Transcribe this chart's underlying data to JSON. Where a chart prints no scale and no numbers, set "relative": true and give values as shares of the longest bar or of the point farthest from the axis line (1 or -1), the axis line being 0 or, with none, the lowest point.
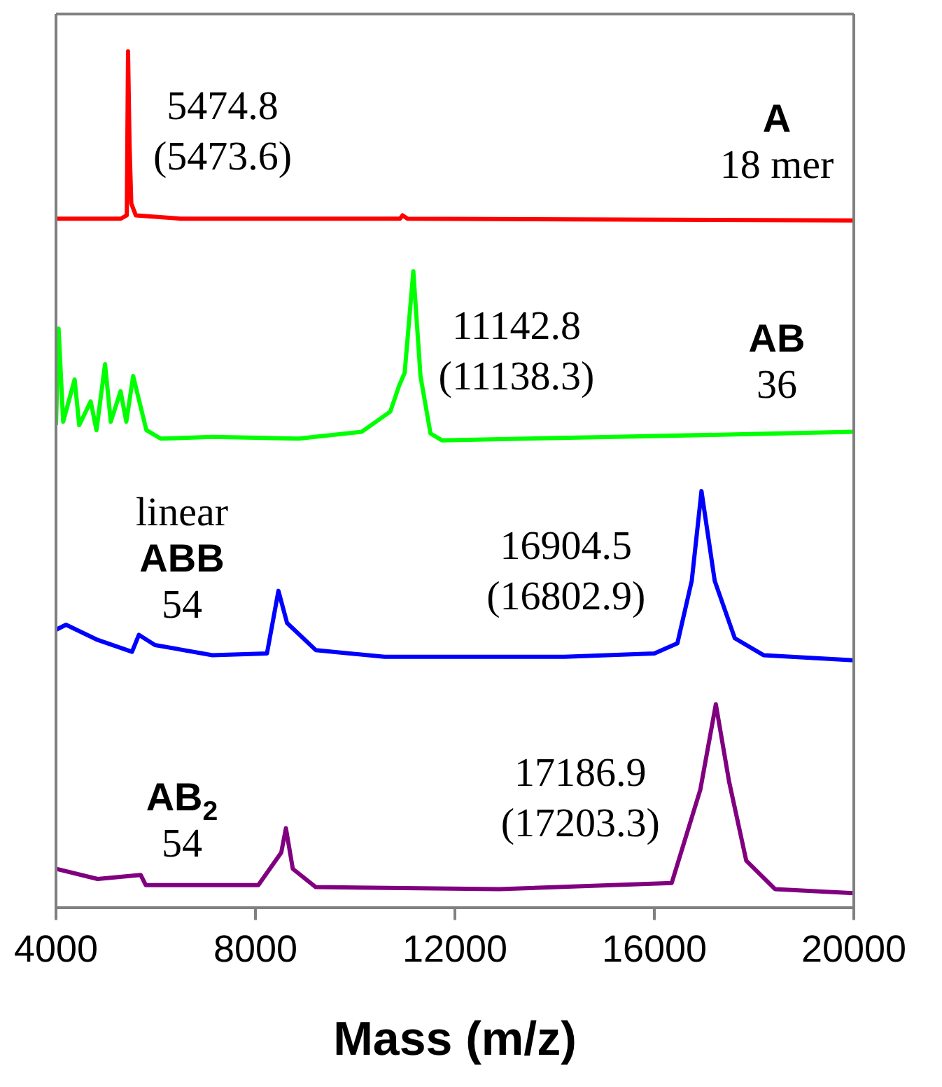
{
  "chart_data": [
    {
      "type": "line",
      "relative": true,
      "xlim": [
        4000,
        20000
      ],
      "tick_labels": false,
      "legend": false,
      "grid": false,
      "x": [
        4000,
        5300,
        5420,
        5445,
        5475,
        5510,
        5600,
        6500,
        10900,
        10950,
        11050,
        20000
      ],
      "series": [
        {
          "name": "A\n18 mer",
          "color": "#ff0000",
          "values": [
            0.01,
            0.01,
            0.03,
            1.0,
            0.45,
            0.1,
            0.03,
            0.01,
            0.01,
            0.03,
            0.01,
            0
          ]
        }
      ],
      "annotations": [
        {
          "text": "5474.8\n(5473.6)",
          "x": 5445,
          "y": 1
        }
      ]
    },
    {
      "type": "line",
      "relative": true,
      "xlim": [
        4000,
        20000
      ],
      "tick_labels": false,
      "legend": false,
      "grid": false,
      "x": [
        4000,
        4052,
        4144,
        4374,
        4466,
        4696,
        4812,
        4984,
        5099,
        5295,
        5410,
        5548,
        5663,
        5813,
        6101,
        7137,
        8864,
        10130,
        10705,
        10878,
        10993,
        11166,
        11310,
        11511,
        11741,
        15195,
        20000
      ],
      "series": [
        {
          "name": "AB\n36",
          "color": "#00ff00",
          "values": [
            0.09,
            0.66,
            0.11,
            0.36,
            0.09,
            0.23,
            0.06,
            0.45,
            0.11,
            0.29,
            0.11,
            0.38,
            0.24,
            0.06,
            0.01,
            0.02,
            0.01,
            0.05,
            0.17,
            0.32,
            0.4,
            1.0,
            0.38,
            0.04,
            0,
            0.02,
            0.05
          ]
        }
      ],
      "annotations": [
        {
          "text": "11142.8\n(11138.3)",
          "x": 11166,
          "y": 1
        }
      ]
    },
    {
      "type": "line",
      "relative": true,
      "xlim": [
        4000,
        20000
      ],
      "tick_labels": false,
      "legend": false,
      "grid": false,
      "x": [
        4000,
        4201,
        4835,
        5525,
        5663,
        5986,
        7137,
        8231,
        8461,
        8634,
        9209,
        10591,
        14195,
        16000,
        16462,
        16750,
        16945,
        17210,
        17613,
        18189,
        20000
      ],
      "series": [
        {
          "name": "linear\nABB\n54",
          "color": "#0000ff",
          "values": [
            0.18,
            0.21,
            0.12,
            0.05,
            0.15,
            0.09,
            0.03,
            0.04,
            0.41,
            0.22,
            0.06,
            0.02,
            0.02,
            0.04,
            0.1,
            0.47,
            1.0,
            0.47,
            0.13,
            0.03,
            0
          ]
        }
      ],
      "annotations": [
        {
          "text": "16904.5\n(16802.9)",
          "x": 16945,
          "y": 1
        }
      ]
    },
    {
      "type": "line",
      "relative": true,
      "xlim": [
        4000,
        20000
      ],
      "xticks": [
        4000,
        8000,
        12000,
        16000,
        20000
      ],
      "legend": false,
      "grid": false,
      "xlabel": "Mass (m/z)",
      "x": [
        4000,
        4835,
        5698,
        5800,
        8058,
        8518,
        8611,
        8749,
        9209,
        12893,
        16347,
        16922,
        17233,
        17498,
        17843,
        18419,
        20000
      ],
      "series": [
        {
          "name": "AB$_{2}$\n54",
          "color": "#800080",
          "values": [
            0.19,
            0.14,
            0.16,
            0.11,
            0.11,
            0.27,
            0.39,
            0.19,
            0.1,
            0.09,
            0.12,
            0.58,
            1.0,
            0.62,
            0.23,
            0.09,
            0.07
          ]
        }
      ],
      "annotations": [
        {
          "text": "17186.9\n(17203.3)",
          "x": 17233,
          "y": 1
        }
      ]
    }
  ]
}
